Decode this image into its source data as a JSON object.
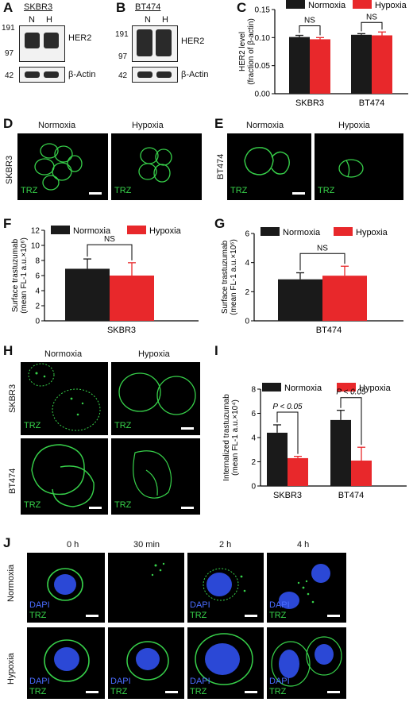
{
  "panels": {
    "A": {
      "letter": "A",
      "cell_line": "SKBR3",
      "lanes": [
        "N",
        "H"
      ],
      "mw": [
        "191",
        "97",
        "42"
      ],
      "proteins": [
        "HER2",
        "β-Actin"
      ]
    },
    "B": {
      "letter": "B",
      "cell_line": "BT474",
      "lanes": [
        "N",
        "H"
      ],
      "mw": [
        "191",
        "97",
        "42"
      ],
      "proteins": [
        "HER2",
        "β-Actin"
      ]
    },
    "C": {
      "letter": "C"
    },
    "D": {
      "letter": "D",
      "row_label": "SKBR3",
      "cols": [
        "Normoxia",
        "Hypoxia"
      ],
      "stain": "TRZ"
    },
    "E": {
      "letter": "E",
      "row_label": "BT474",
      "cols": [
        "Normoxia",
        "Hypoxia"
      ],
      "stain": "TRZ"
    },
    "F": {
      "letter": "F"
    },
    "G": {
      "letter": "G"
    },
    "H": {
      "letter": "H",
      "cols": [
        "Normoxia",
        "Hypoxia"
      ],
      "rows": [
        "SKBR3",
        "BT474"
      ],
      "stain": "TRZ"
    },
    "I": {
      "letter": "I"
    },
    "J": {
      "letter": "J",
      "times": [
        "0 h",
        "30 min",
        "2 h",
        "4 h"
      ],
      "rows": [
        "Normoxia",
        "Hypoxia"
      ],
      "stain1": "DAPI",
      "stain2": "TRZ"
    }
  },
  "colors": {
    "normoxia": "#1a1a1a",
    "hypoxia": "#e8282b",
    "trz": "#37d14a",
    "dapi": "#3a5bff"
  },
  "chart_data": [
    {
      "id": "C",
      "type": "bar",
      "categories": [
        "SKBR3",
        "BT474"
      ],
      "series": [
        {
          "name": "Normoxia",
          "values": [
            0.101,
            0.105
          ],
          "errors": [
            0.003,
            0.002
          ]
        },
        {
          "name": "Hypoxia",
          "values": [
            0.097,
            0.104
          ],
          "errors": [
            0.003,
            0.006
          ]
        }
      ],
      "ylabel_line1": "HER2 level",
      "ylabel_line2": "(fraction of β-actin)",
      "ylim": [
        0,
        0.15
      ],
      "yticks": [
        "0.00",
        "0.05",
        "0.10",
        "0.15"
      ],
      "annotations": [
        "NS",
        "NS"
      ],
      "legend": "top"
    },
    {
      "id": "F",
      "type": "bar",
      "categories": [
        "SKBR3"
      ],
      "series": [
        {
          "name": "Normoxia",
          "values": [
            6.9
          ],
          "errors": [
            1.3
          ]
        },
        {
          "name": "Hypoxia",
          "values": [
            6.0
          ],
          "errors": [
            1.7
          ]
        }
      ],
      "ylabel_line1": "Surface trastuzumab",
      "ylabel_line2": "(mean FL-1 a.u.×10⁶)",
      "xlabel": "SKBR3",
      "ylim": [
        0,
        12
      ],
      "yticks": [
        "0",
        "2",
        "4",
        "6",
        "8",
        "10",
        "12"
      ],
      "annotations": [
        "NS"
      ],
      "legend": "top"
    },
    {
      "id": "G",
      "type": "bar",
      "categories": [
        "BT474"
      ],
      "series": [
        {
          "name": "Normoxia",
          "values": [
            2.85
          ],
          "errors": [
            0.45
          ]
        },
        {
          "name": "Hypoxia",
          "values": [
            3.1
          ],
          "errors": [
            0.65
          ]
        }
      ],
      "ylabel_line1": "Surface trastuzumab",
      "ylabel_line2": "(mean FL-1 a.u.×10⁶)",
      "xlabel": "BT474",
      "ylim": [
        0,
        6
      ],
      "yticks": [
        "0",
        "2",
        "4",
        "6"
      ],
      "annotations": [
        "NS"
      ],
      "legend": "top"
    },
    {
      "id": "I",
      "type": "bar",
      "categories": [
        "SKBR3",
        "BT474"
      ],
      "series": [
        {
          "name": "Normoxia",
          "values": [
            4.4,
            5.45
          ],
          "errors": [
            0.65,
            0.8
          ]
        },
        {
          "name": "Hypoxia",
          "values": [
            2.3,
            2.1
          ],
          "errors": [
            0.15,
            1.1
          ]
        }
      ],
      "ylabel_line1": "Internalized trastuzumab",
      "ylabel_line2": "(mean FL-1 a.u.×10⁴)",
      "ylim": [
        0,
        8
      ],
      "yticks": [
        "0",
        "2",
        "4",
        "6",
        "8"
      ],
      "annotations": [
        "P < 0.05",
        "P < 0.05"
      ],
      "legend": "top"
    }
  ]
}
